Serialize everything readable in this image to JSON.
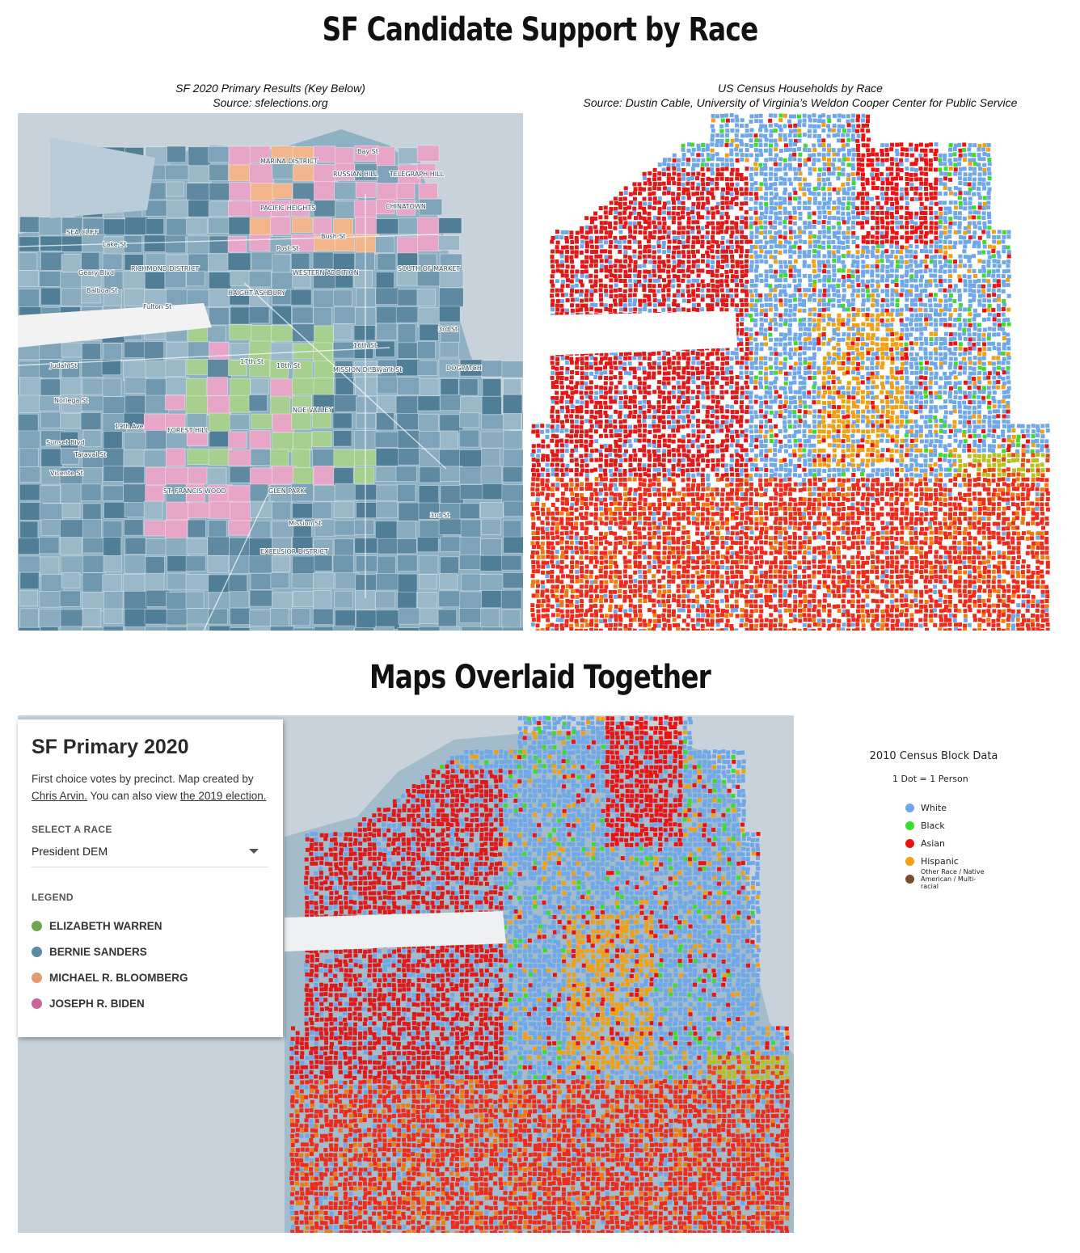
{
  "titles": {
    "main": "SF Candidate Support by Race",
    "overlay": "Maps Overlaid Together"
  },
  "captions": {
    "left_line1": "SF 2020 Primary Results (Key Below)",
    "left_line2": "Source: sfelections.org",
    "right_line1": "US Census Households by Race",
    "right_line2": "Source: Dustin Cable, University of Virginia’s Weldon Cooper Center for Public Service"
  },
  "map_labels": [
    "Bay St",
    "MARINA DISTRICT",
    "RUSSIAN HILL",
    "TELEGRAPH HILL",
    "CHINATOWN",
    "PACIFIC HEIGHTS",
    "SEA CLIFF",
    "Lake St",
    "RICHMOND DISTRICT",
    "Geary Blvd",
    "Balboa St",
    "Bush St",
    "Post St",
    "WESTERN ADDITION",
    "SOUTH OF MARKET",
    "Fulton St",
    "HAIGHT-ASHBURY",
    "16th St",
    "3rd St",
    "Judah St",
    "17th St",
    "18th St",
    "MISSION DISTRICT",
    "Bryant St",
    "DOGPATCH",
    "Noriega St",
    "NOE VALLEY",
    "FOREST HILL",
    "Taraval St",
    "Sunset Blvd",
    "19th Ave",
    "Vicente St",
    "ST. FRANCIS WOOD",
    "GLEN PARK",
    "Mission St",
    "EXCELSIOR DISTRICT",
    "3rd St"
  ],
  "panel": {
    "title": "SF Primary 2020",
    "desc_prefix": "First choice votes by precinct. Map created by ",
    "author_link": "Chris Arvin.",
    "desc_middle": " You can also view ",
    "election_link": "the 2019 election.",
    "select_label": "SELECT A RACE",
    "select_value": "President DEM",
    "legend_label": "LEGEND",
    "legend": [
      {
        "name": "ELIZABETH WARREN",
        "color": "#6aa84f"
      },
      {
        "name": "BERNIE SANDERS",
        "color": "#5b8aa3"
      },
      {
        "name": "MICHAEL R. BLOOMBERG",
        "color": "#e39b71"
      },
      {
        "name": "JOSEPH R. BIDEN",
        "color": "#c9679a"
      }
    ]
  },
  "census_legend": {
    "title": "2010 Census Block Data",
    "subtitle": "1 Dot = 1 Person",
    "items": [
      {
        "name": "White",
        "color": "#6fa8ea"
      },
      {
        "name": "Black",
        "color": "#3ddc2a"
      },
      {
        "name": "Asian",
        "color": "#ee1111"
      },
      {
        "name": "Hispanic",
        "color": "#f0a010"
      },
      {
        "name": "Other Race / Native American / Multi-racial",
        "color": "#7a4a32"
      }
    ]
  },
  "colors": {
    "water": "#c8d2da",
    "land": "#9fb8c7",
    "park": "#f2f2f2",
    "sanders": "#5b8aa3",
    "warren": "#a7cf8f",
    "biden": "#e7a6c8",
    "bloomberg": "#f2b58c"
  }
}
